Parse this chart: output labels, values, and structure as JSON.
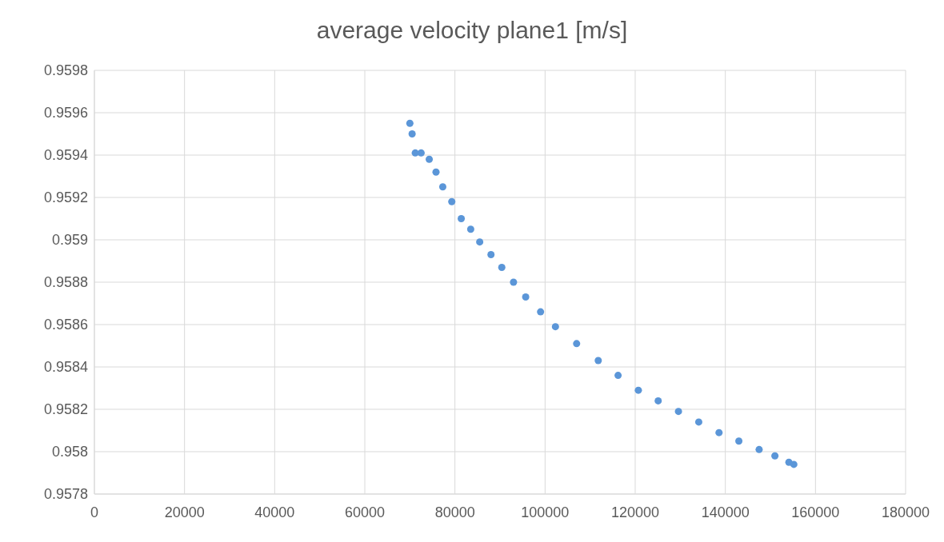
{
  "chart_data": {
    "type": "scatter",
    "title": "average velocity plane1 [m/s]",
    "x": [
      70000,
      70500,
      71200,
      72500,
      74300,
      75800,
      77300,
      79300,
      81400,
      83500,
      85500,
      88000,
      90400,
      93000,
      95700,
      99000,
      102300,
      107000,
      111800,
      116200,
      120700,
      125100,
      129600,
      134100,
      138600,
      143000,
      147500,
      151000,
      154100,
      155200
    ],
    "series": [
      {
        "color": "#5b96d8",
        "values": [
          0.95955,
          0.9595,
          0.95941,
          0.95941,
          0.95938,
          0.95932,
          0.95925,
          0.95918,
          0.9591,
          0.95905,
          0.95899,
          0.95893,
          0.95887,
          0.9588,
          0.95873,
          0.95866,
          0.95859,
          0.95851,
          0.95843,
          0.95836,
          0.95829,
          0.95824,
          0.95819,
          0.95814,
          0.95809,
          0.95805,
          0.95801,
          0.95798,
          0.95795,
          0.95794
        ]
      }
    ],
    "xlim": [
      0,
      180000
    ],
    "xticks": [
      0,
      20000,
      40000,
      60000,
      80000,
      100000,
      120000,
      140000,
      160000,
      180000
    ],
    "ylim": [
      0.9578,
      0.9598
    ],
    "yticks": [
      0.9578,
      0.958,
      0.9582,
      0.9584,
      0.9586,
      0.9588,
      0.959,
      0.9592,
      0.9594,
      0.9596,
      0.9598
    ],
    "grid": true,
    "marker": "circle",
    "legend": false
  }
}
